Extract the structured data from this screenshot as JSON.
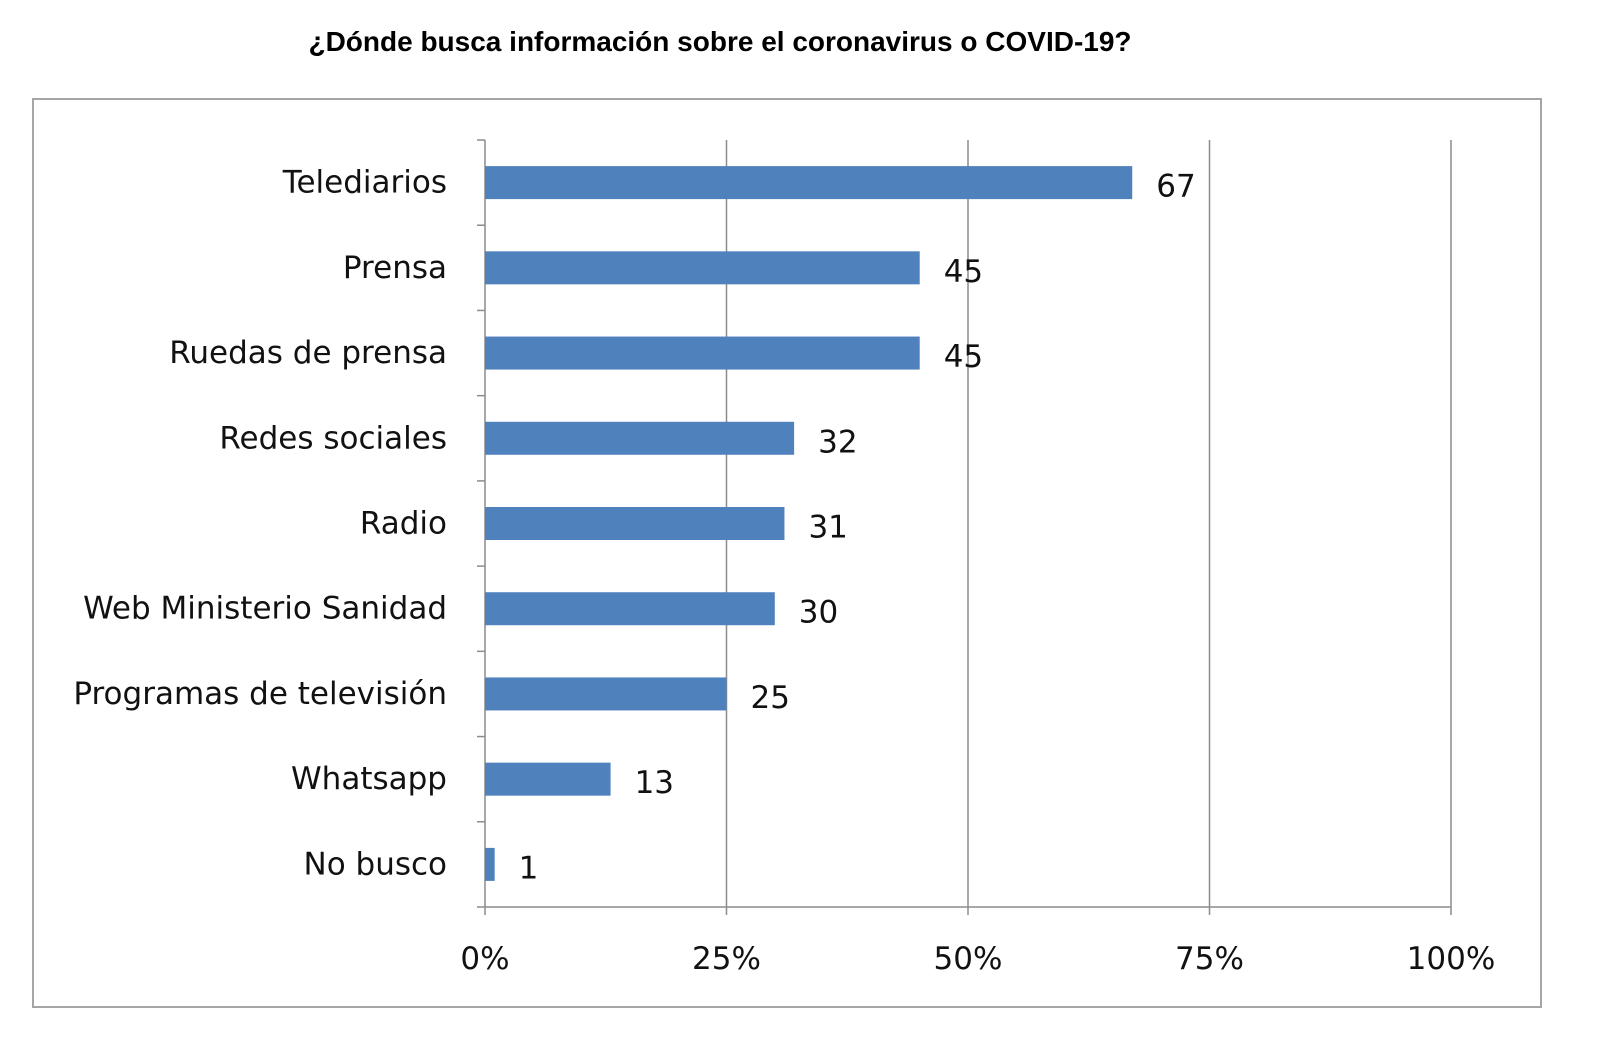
{
  "chart_data": {
    "type": "bar",
    "orientation": "horizontal",
    "title": "¿Dónde busca información sobre el coronavirus o COVID-19?",
    "categories": [
      "Telediarios",
      "Prensa",
      "Ruedas de prensa",
      "Redes sociales",
      "Radio",
      "Web Ministerio Sanidad",
      "Programas de televisión",
      "Whatsapp",
      "No busco"
    ],
    "values": [
      67,
      45,
      45,
      32,
      31,
      30,
      25,
      13,
      1
    ],
    "x_ticks": [
      "0%",
      "25%",
      "50%",
      "75%",
      "100%"
    ],
    "xlim": [
      0,
      100
    ],
    "grid": true,
    "bar_color": "#4f81bd",
    "xlabel": "",
    "ylabel": ""
  }
}
